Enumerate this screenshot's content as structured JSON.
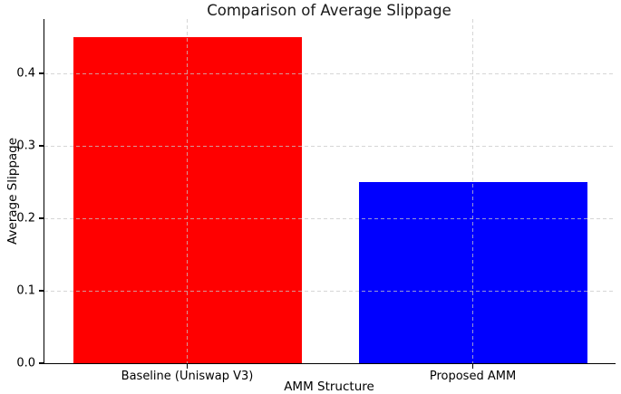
{
  "chart_data": {
    "type": "bar",
    "title": "Comparison of Average Slippage",
    "xlabel": "AMM Structure",
    "ylabel": "Average Slippage",
    "categories": [
      "Baseline (Uniswap V3)",
      "Proposed AMM"
    ],
    "values": [
      0.45,
      0.25
    ],
    "bar_colors": [
      "#ff0000",
      "#0000ff"
    ],
    "bar_width_fraction": 0.8,
    "ylim": [
      0,
      0.475
    ],
    "yticks": [
      0.0,
      0.1,
      0.2,
      0.3,
      0.4
    ],
    "ytick_labels": [
      "0.0",
      "0.1",
      "0.2",
      "0.3",
      "0.4"
    ],
    "grid": "dashed",
    "grid_color": "#c8c8c8",
    "legend": "none",
    "spines": [
      "left",
      "bottom"
    ]
  }
}
